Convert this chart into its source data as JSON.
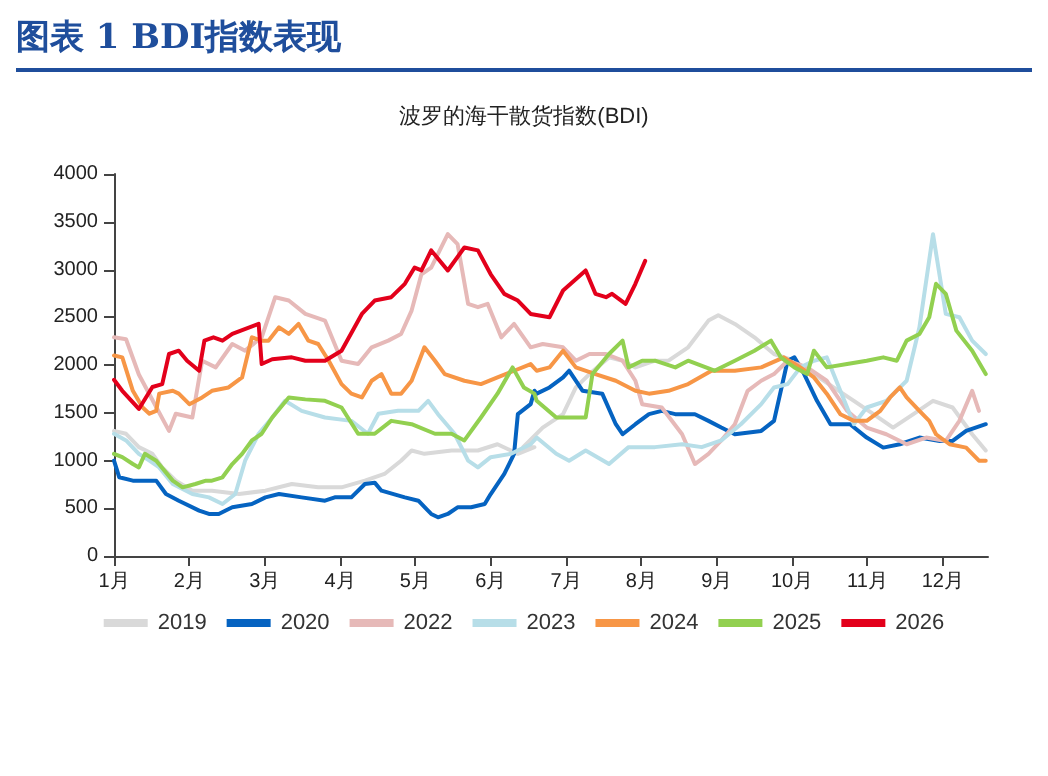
{
  "chart_data": {
    "type": "line",
    "title": "图表 1 BDI指数表现",
    "subtitle": "波罗的海干散货指数(BDI)",
    "xlim": [
      1,
      12.6
    ],
    "xticks": [
      {
        "value": 1,
        "label": "1月"
      },
      {
        "value": 2,
        "label": "2月"
      },
      {
        "value": 3,
        "label": "3月"
      },
      {
        "value": 4,
        "label": "4月"
      },
      {
        "value": 5,
        "label": "5月"
      },
      {
        "value": 6,
        "label": "6月"
      },
      {
        "value": 7,
        "label": "7月"
      },
      {
        "value": 8,
        "label": "8月"
      },
      {
        "value": 9,
        "label": "9月"
      },
      {
        "value": 10,
        "label": "10月"
      },
      {
        "value": 11,
        "label": "11月"
      },
      {
        "value": 12,
        "label": "12月"
      }
    ],
    "ylim": [
      0,
      4000
    ],
    "yticks": [
      0,
      500,
      1000,
      1500,
      2000,
      2500,
      3000,
      3500,
      4000
    ],
    "grid": false,
    "legend": "bottom",
    "marker": "none",
    "line_style": "solid",
    "series": [
      {
        "name": "2019",
        "color": "#d9d9d9",
        "x": [
          1.0,
          1.16,
          1.33,
          1.51,
          1.64,
          1.82,
          2.04,
          2.3,
          2.66,
          3.01,
          3.36,
          3.71,
          4.02,
          4.33,
          4.59,
          4.81,
          4.95,
          5.12,
          5.48,
          5.83,
          6.09,
          6.36,
          6.58,
          6.43,
          6.69,
          6.96,
          7.13,
          7.31,
          7.57,
          7.75,
          7.92,
          8.18,
          8.36,
          8.62,
          8.89,
          9.02,
          9.24,
          9.5,
          9.76,
          10.03,
          10.29,
          10.55,
          10.82,
          11.08,
          11.34,
          11.61,
          11.87,
          12.13,
          12.39,
          12.57
        ],
        "values": [
          1310,
          1280,
          1140,
          1070,
          928,
          789,
          684,
          684,
          649,
          684,
          754,
          719,
          719,
          789,
          859,
          998,
          1105,
          1070,
          1105,
          1105,
          1170,
          1070,
          1140,
          1140,
          1345,
          1485,
          1765,
          1905,
          2080,
          2045,
          1975,
          2045,
          2045,
          2185,
          2465,
          2520,
          2430,
          2290,
          2115,
          2045,
          1905,
          1765,
          1625,
          1485,
          1345,
          1485,
          1625,
          1555,
          1275,
          1105
        ]
      },
      {
        "name": "2020",
        "color": "#0563c1",
        "x": [
          1.0,
          1.07,
          1.25,
          1.56,
          1.69,
          1.86,
          2.13,
          2.26,
          2.39,
          2.57,
          2.83,
          3.01,
          3.19,
          3.49,
          3.8,
          3.93,
          4.15,
          4.33,
          4.46,
          4.55,
          4.86,
          5.04,
          5.21,
          5.3,
          5.43,
          5.56,
          5.74,
          5.92,
          6.0,
          6.18,
          6.31,
          6.36,
          6.53,
          6.58,
          6.61,
          6.78,
          6.96,
          7.04,
          7.22,
          7.48,
          7.66,
          7.75,
          7.92,
          8.1,
          8.27,
          8.45,
          8.71,
          8.89,
          9.06,
          9.24,
          9.59,
          9.76,
          9.94,
          10.03,
          10.16,
          10.33,
          10.51,
          10.77,
          10.99,
          11.21,
          11.43,
          11.69,
          11.96,
          12.13,
          12.31,
          12.57
        ],
        "values": [
          998,
          824,
          789,
          789,
          649,
          579,
          475,
          440,
          440,
          510,
          544,
          614,
          649,
          614,
          579,
          614,
          614,
          754,
          768,
          684,
          614,
          579,
          440,
          405,
          440,
          510,
          510,
          544,
          649,
          859,
          1070,
          1485,
          1590,
          1730,
          1700,
          1765,
          1870,
          1940,
          1730,
          1700,
          1380,
          1275,
          1380,
          1485,
          1520,
          1485,
          1485,
          1415,
          1345,
          1275,
          1310,
          1415,
          2045,
          2080,
          1905,
          1625,
          1380,
          1380,
          1240,
          1135,
          1170,
          1240,
          1205,
          1205,
          1310,
          1380
        ]
      },
      {
        "name": "2022",
        "color": "#e6b9b8",
        "x": [
          1.0,
          1.16,
          1.33,
          1.56,
          1.73,
          1.82,
          2.04,
          2.17,
          2.35,
          2.57,
          2.74,
          2.96,
          3.14,
          3.32,
          3.54,
          3.8,
          4.02,
          4.24,
          4.42,
          4.64,
          4.81,
          4.95,
          5.08,
          5.21,
          5.43,
          5.56,
          5.7,
          5.83,
          5.96,
          6.14,
          6.31,
          6.53,
          6.69,
          6.96,
          7.13,
          7.31,
          7.53,
          7.75,
          7.92,
          8.01,
          8.27,
          8.54,
          8.71,
          8.89,
          9.06,
          9.24,
          9.41,
          9.59,
          9.76,
          9.94,
          10.2,
          10.46,
          10.73,
          10.99,
          11.25,
          11.52,
          11.78,
          12.04,
          12.22,
          12.39,
          12.48
        ],
        "values": [
          2290,
          2270,
          1900,
          1560,
          1310,
          1490,
          1450,
          2045,
          1975,
          2220,
          2150,
          2290,
          2710,
          2675,
          2535,
          2465,
          2045,
          2010,
          2185,
          2255,
          2325,
          2570,
          2950,
          3020,
          3370,
          3265,
          2640,
          2605,
          2640,
          2290,
          2430,
          2185,
          2220,
          2185,
          2045,
          2115,
          2115,
          2045,
          1835,
          1590,
          1555,
          1275,
          963,
          1070,
          1210,
          1380,
          1730,
          1835,
          1905,
          2045,
          1975,
          1835,
          1520,
          1345,
          1275,
          1170,
          1240,
          1205,
          1415,
          1730,
          1520
        ]
      },
      {
        "name": "2023",
        "color": "#b7dee8",
        "x": [
          1.0,
          1.16,
          1.33,
          1.47,
          1.6,
          1.78,
          2.04,
          2.26,
          2.44,
          2.61,
          2.74,
          2.92,
          3.1,
          3.27,
          3.49,
          3.8,
          4.15,
          4.37,
          4.51,
          4.77,
          5.04,
          5.17,
          5.3,
          5.52,
          5.7,
          5.83,
          6.0,
          6.27,
          6.53,
          6.61,
          6.87,
          7.04,
          7.26,
          7.57,
          7.83,
          8.18,
          8.54,
          8.8,
          9.06,
          9.32,
          9.59,
          9.76,
          9.94,
          10.11,
          10.29,
          10.46,
          10.64,
          10.82,
          10.99,
          11.25,
          11.52,
          11.69,
          11.87,
          12.04,
          12.22,
          12.39,
          12.57
        ],
        "values": [
          1280,
          1210,
          1070,
          998,
          928,
          754,
          649,
          614,
          544,
          649,
          998,
          1280,
          1450,
          1625,
          1520,
          1450,
          1415,
          1280,
          1490,
          1520,
          1520,
          1625,
          1485,
          1280,
          998,
          928,
          1035,
          1070,
          1170,
          1240,
          1070,
          998,
          1105,
          963,
          1140,
          1140,
          1170,
          1140,
          1210,
          1380,
          1590,
          1765,
          1800,
          1975,
          2045,
          2080,
          1730,
          1380,
          1555,
          1625,
          1835,
          2395,
          3370,
          2535,
          2500,
          2255,
          2115
        ]
      },
      {
        "name": "2024",
        "color": "#f79646",
        "x": [
          1.0,
          1.11,
          1.25,
          1.38,
          1.47,
          1.56,
          1.6,
          1.78,
          1.86,
          2.0,
          2.17,
          2.3,
          2.52,
          2.7,
          2.83,
          2.96,
          3.05,
          3.19,
          3.32,
          3.45,
          3.58,
          3.71,
          3.85,
          4.02,
          4.15,
          4.29,
          4.42,
          4.55,
          4.68,
          4.81,
          4.95,
          5.12,
          5.26,
          5.39,
          5.65,
          5.87,
          6.09,
          6.31,
          6.53,
          6.61,
          6.78,
          6.96,
          7.13,
          7.39,
          7.66,
          7.92,
          8.1,
          8.36,
          8.62,
          8.93,
          9.24,
          9.59,
          9.89,
          10.11,
          10.29,
          10.46,
          10.64,
          10.82,
          10.99,
          11.17,
          11.3,
          11.43,
          11.52,
          11.69,
          11.82,
          11.91,
          12.09,
          12.31,
          12.48,
          12.57
        ],
        "values": [
          2100,
          2080,
          1730,
          1555,
          1490,
          1520,
          1700,
          1730,
          1700,
          1590,
          1660,
          1730,
          1765,
          1870,
          2290,
          2255,
          2255,
          2395,
          2325,
          2430,
          2255,
          2220,
          2045,
          1800,
          1700,
          1660,
          1835,
          1905,
          1700,
          1700,
          1835,
          2185,
          2045,
          1905,
          1835,
          1800,
          1870,
          1940,
          2010,
          1940,
          1975,
          2150,
          1975,
          1905,
          1835,
          1730,
          1700,
          1730,
          1800,
          1940,
          1940,
          1975,
          2080,
          1975,
          1870,
          1700,
          1485,
          1415,
          1415,
          1520,
          1660,
          1765,
          1660,
          1520,
          1415,
          1275,
          1170,
          1135,
          998,
          998
        ]
      },
      {
        "name": "2025",
        "color": "#92d050",
        "x": [
          1.0,
          1.11,
          1.25,
          1.33,
          1.41,
          1.56,
          1.78,
          1.91,
          2.08,
          2.22,
          2.3,
          2.44,
          2.57,
          2.7,
          2.83,
          2.96,
          3.1,
          3.32,
          3.54,
          3.8,
          4.02,
          4.24,
          4.46,
          4.68,
          4.95,
          5.26,
          5.48,
          5.65,
          5.87,
          6.09,
          6.29,
          6.44,
          6.58,
          6.61,
          6.87,
          7.13,
          7.26,
          7.35,
          7.57,
          7.75,
          7.83,
          8.01,
          8.18,
          8.45,
          8.62,
          8.97,
          9.24,
          9.5,
          9.72,
          9.85,
          10.03,
          10.2,
          10.29,
          10.46,
          10.73,
          10.99,
          11.21,
          11.39,
          11.52,
          11.69,
          11.82,
          11.91,
          12.04,
          12.18,
          12.39,
          12.57
        ],
        "values": [
          1070,
          1035,
          963,
          928,
          1070,
          998,
          789,
          719,
          754,
          789,
          789,
          824,
          963,
          1070,
          1210,
          1280,
          1450,
          1660,
          1640,
          1625,
          1555,
          1280,
          1280,
          1415,
          1380,
          1280,
          1280,
          1210,
          1450,
          1700,
          1975,
          1765,
          1700,
          1625,
          1450,
          1450,
          1450,
          1905,
          2115,
          2255,
          1975,
          2045,
          2045,
          1975,
          2045,
          1940,
          2045,
          2150,
          2255,
          2080,
          1975,
          1905,
          2150,
          1975,
          2010,
          2045,
          2080,
          2045,
          2255,
          2325,
          2500,
          2850,
          2745,
          2360,
          2150,
          1905
        ]
      },
      {
        "name": "2026",
        "color": "#e3001b",
        "x": [
          1.0,
          1.11,
          1.33,
          1.51,
          1.64,
          1.73,
          1.86,
          1.97,
          2.13,
          2.2,
          2.32,
          2.44,
          2.57,
          2.92,
          2.96,
          3.1,
          3.36,
          3.54,
          3.8,
          4.02,
          4.29,
          4.46,
          4.68,
          4.86,
          4.99,
          5.08,
          5.21,
          5.43,
          5.65,
          5.83,
          6.0,
          6.18,
          6.36,
          6.53,
          6.78,
          6.96,
          7.26,
          7.39,
          7.53,
          7.61,
          7.79,
          7.92,
          8.05
        ],
        "values": [
          1845,
          1730,
          1540,
          1770,
          1800,
          2115,
          2150,
          2045,
          1940,
          2255,
          2290,
          2255,
          2325,
          2430,
          2010,
          2060,
          2080,
          2045,
          2045,
          2150,
          2535,
          2675,
          2710,
          2850,
          3020,
          2990,
          3200,
          2990,
          3230,
          3200,
          2950,
          2745,
          2675,
          2535,
          2500,
          2780,
          2990,
          2745,
          2710,
          2745,
          2640,
          2850,
          3090
        ]
      }
    ]
  }
}
